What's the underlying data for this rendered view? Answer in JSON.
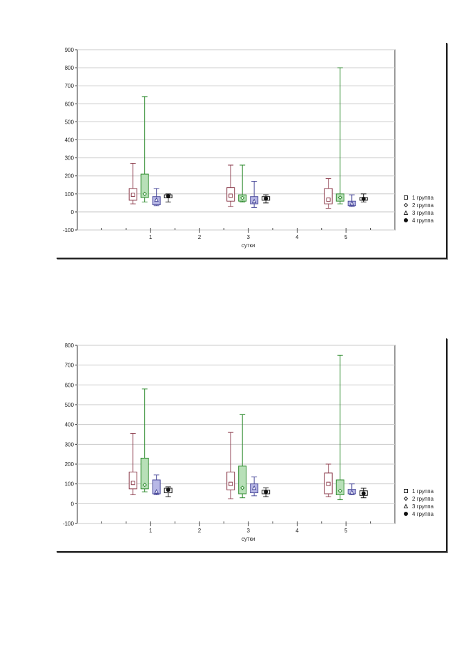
{
  "chart_data": [
    {
      "type": "box",
      "xlabel": "сутки",
      "ylabel": "",
      "ylim": [
        -100,
        900
      ],
      "yticks": [
        -100,
        0,
        100,
        200,
        300,
        400,
        500,
        600,
        700,
        800,
        900
      ],
      "xticks": [
        1,
        2,
        3,
        4,
        5
      ],
      "grid": true,
      "legend_position": "bottom-right",
      "series": [
        {
          "name": "1 группа",
          "marker": "square",
          "box_color": "#ffffff",
          "stroke": "#8b3a4a",
          "boxes": [
            {
              "x": 1,
              "min": 45,
              "q1": 65,
              "median": 95,
              "q3": 130,
              "max": 270
            },
            {
              "x": 3,
              "min": 30,
              "q1": 60,
              "median": 90,
              "q3": 135,
              "max": 260
            },
            {
              "x": 5,
              "min": 20,
              "q1": 45,
              "median": 68,
              "q3": 130,
              "max": 185
            }
          ]
        },
        {
          "name": "2 группа",
          "marker": "diamond",
          "box_color": "#b8e0b8",
          "stroke": "#2e8b2e",
          "boxes": [
            {
              "x": 1,
              "min": 55,
              "q1": 80,
              "median": 100,
              "q3": 210,
              "max": 640
            },
            {
              "x": 3,
              "min": 55,
              "q1": 60,
              "median": 78,
              "q3": 95,
              "max": 260
            },
            {
              "x": 5,
              "min": 45,
              "q1": 60,
              "median": 80,
              "q3": 100,
              "max": 800
            }
          ]
        },
        {
          "name": "3 группа",
          "marker": "triangle",
          "box_color": "#b8b8e6",
          "stroke": "#4a4a9a",
          "boxes": [
            {
              "x": 1,
              "min": 35,
              "q1": 40,
              "median": 68,
              "q3": 85,
              "max": 130
            },
            {
              "x": 3,
              "min": 25,
              "q1": 45,
              "median": 60,
              "q3": 85,
              "max": 170
            },
            {
              "x": 5,
              "min": 30,
              "q1": 35,
              "median": 48,
              "q3": 60,
              "max": 95
            }
          ]
        },
        {
          "name": "4 группа",
          "marker": "circle",
          "box_color": "#ffffff",
          "stroke": "#111111",
          "boxes": [
            {
              "x": 1,
              "min": 55,
              "q1": 78,
              "median": 88,
              "q3": 95,
              "max": 100
            },
            {
              "x": 3,
              "min": 50,
              "q1": 65,
              "median": 75,
              "q3": 85,
              "max": 95
            },
            {
              "x": 5,
              "min": 55,
              "q1": 65,
              "median": 73,
              "q3": 80,
              "max": 100
            }
          ]
        }
      ]
    },
    {
      "type": "box",
      "xlabel": "сутки",
      "ylabel": "",
      "ylim": [
        -100,
        800
      ],
      "yticks": [
        -100,
        0,
        100,
        200,
        300,
        400,
        500,
        600,
        700,
        800
      ],
      "xticks": [
        1,
        2,
        3,
        4,
        5
      ],
      "grid": true,
      "legend_position": "bottom-right",
      "series": [
        {
          "name": "1 группа",
          "marker": "square",
          "box_color": "#ffffff",
          "stroke": "#8b3a4a",
          "boxes": [
            {
              "x": 1,
              "min": 45,
              "q1": 75,
              "median": 105,
              "q3": 160,
              "max": 355
            },
            {
              "x": 3,
              "min": 25,
              "q1": 70,
              "median": 100,
              "q3": 160,
              "max": 360
            },
            {
              "x": 5,
              "min": 35,
              "q1": 50,
              "median": 100,
              "q3": 155,
              "max": 200
            }
          ]
        },
        {
          "name": "2 группа",
          "marker": "diamond",
          "box_color": "#b8e0b8",
          "stroke": "#2e8b2e",
          "boxes": [
            {
              "x": 1,
              "min": 60,
              "q1": 75,
              "median": 95,
              "q3": 230,
              "max": 580
            },
            {
              "x": 3,
              "min": 30,
              "q1": 50,
              "median": 80,
              "q3": 190,
              "max": 450
            },
            {
              "x": 5,
              "min": 20,
              "q1": 45,
              "median": 65,
              "q3": 120,
              "max": 750
            }
          ]
        },
        {
          "name": "3 группа",
          "marker": "triangle",
          "box_color": "#b8b8e6",
          "stroke": "#4a4a9a",
          "boxes": [
            {
              "x": 1,
              "min": 45,
              "q1": 50,
              "median": 62,
              "q3": 120,
              "max": 145
            },
            {
              "x": 3,
              "min": 40,
              "q1": 55,
              "median": 80,
              "q3": 100,
              "max": 135
            },
            {
              "x": 5,
              "min": 45,
              "q1": 50,
              "median": 58,
              "q3": 72,
              "max": 100
            }
          ]
        },
        {
          "name": "4 группа",
          "marker": "circle",
          "box_color": "#ffffff",
          "stroke": "#111111",
          "boxes": [
            {
              "x": 1,
              "min": 35,
              "q1": 55,
              "median": 70,
              "q3": 78,
              "max": 85
            },
            {
              "x": 3,
              "min": 35,
              "q1": 50,
              "median": 60,
              "q3": 68,
              "max": 80
            },
            {
              "x": 5,
              "min": 30,
              "q1": 42,
              "median": 52,
              "q3": 65,
              "max": 78
            }
          ]
        }
      ]
    }
  ]
}
